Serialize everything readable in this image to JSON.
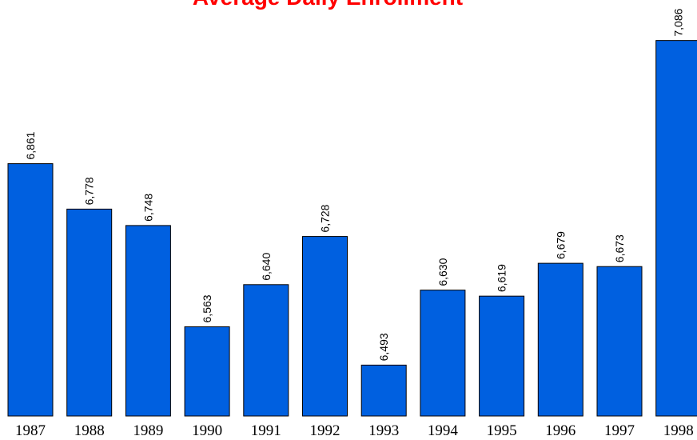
{
  "chart_data": {
    "type": "bar",
    "title": "Average Daily Enrollment",
    "categories": [
      "1987",
      "1988",
      "1989",
      "1990",
      "1991",
      "1992",
      "1993",
      "1994",
      "1995",
      "1996",
      "1997",
      "1998"
    ],
    "values": [
      6861,
      6778,
      6748,
      6563,
      6640,
      6728,
      6493,
      6630,
      6619,
      6679,
      6673,
      7086
    ],
    "value_labels": [
      "6,861",
      "6,778",
      "6,748",
      "6,563",
      "6,640",
      "6,728",
      "6,493",
      "6,630",
      "6,619",
      "6,679",
      "6,673",
      "7,086"
    ],
    "color": "#0060e0",
    "ylim": [
      6400,
      7160
    ]
  }
}
